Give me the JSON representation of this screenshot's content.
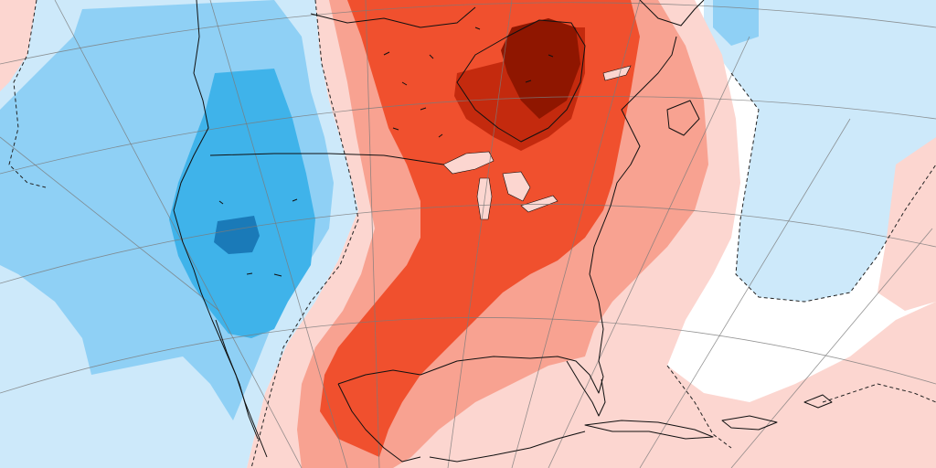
{
  "map": {
    "type": "temperature-anomaly-map",
    "region": "North America",
    "projection": "conic",
    "labels_visible": false,
    "palette": {
      "background": "#ffffff",
      "cold_light": "#cde9fa",
      "cold_medium": "#8fd0f5",
      "cold_strong": "#3fb3ea",
      "cold_extreme": "#1a7ab8",
      "warm_light": "#fcd6d0",
      "warm_medium": "#f8a291",
      "warm_strong": "#f0502e",
      "warm_extreme": "#c42a0e",
      "warm_peak": "#8f1600",
      "coastline": "#111111",
      "graticule": "#7a7a7a",
      "contour_dashed": "#222222"
    },
    "icons": [
      "map-icon"
    ]
  }
}
